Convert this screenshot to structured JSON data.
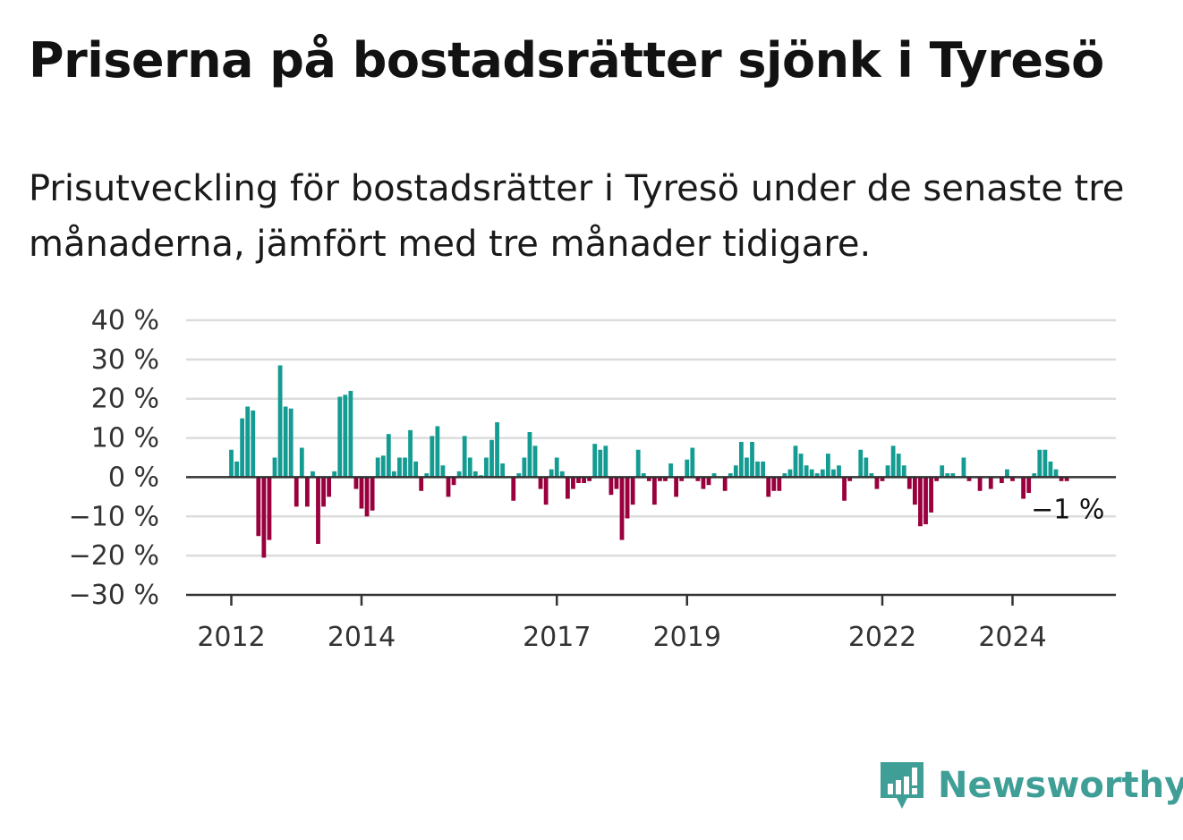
{
  "title": "Priserna på bostadsrätter sjönk i Tyresö",
  "subtitle": "Prisutveckling för bostadsrätter i Tyresö under de senaste tre månaderna, jämfört med tre månader tidigare.",
  "brand": {
    "name": "Newsworthy",
    "icon": "newsworthy-logo-icon"
  },
  "colors": {
    "positive": "#149c93",
    "negative": "#99003d",
    "grid": "#dcdcdc",
    "axis": "#333333",
    "brand": "#3f9f97"
  },
  "chart_data": {
    "type": "bar",
    "x_start": "2012-01",
    "frequency": "monthly",
    "ylim": [
      -30,
      40
    ],
    "y_ticks": [
      40,
      30,
      20,
      10,
      0,
      -10,
      -20,
      -30
    ],
    "y_tick_labels": [
      "40 %",
      "30 %",
      "20 %",
      "10 %",
      "0 %",
      "−10 %",
      "−20 %",
      "−30 %"
    ],
    "x_ticks": [
      "2012",
      "2014",
      "2017",
      "2019",
      "2022",
      "2024"
    ],
    "last_value_label": "−1 %",
    "grid": true,
    "values": [
      7,
      4,
      15,
      18,
      17,
      -15,
      -20.5,
      -16,
      5,
      28.5,
      18,
      17.5,
      -7.5,
      7.5,
      -7.5,
      1.5,
      -17,
      -7.5,
      -5,
      1.5,
      20.5,
      21,
      22,
      -3,
      -8,
      -10,
      -8.5,
      5,
      5.5,
      11,
      1.5,
      5,
      5,
      12,
      4,
      -3.5,
      1,
      10.5,
      13,
      3,
      -5,
      -2,
      1.5,
      10.5,
      5,
      1.5,
      0.5,
      5,
      9.5,
      14,
      3.5,
      0,
      -6,
      1,
      5,
      11.5,
      8,
      -3,
      -7,
      2,
      5,
      1.5,
      -5.5,
      -3,
      -1.5,
      -1.5,
      -1,
      8.5,
      7,
      8,
      -4.5,
      -3,
      -16,
      -10.5,
      -7,
      7,
      1,
      -1,
      -7,
      -1,
      -1,
      3.5,
      -5,
      -1,
      4.5,
      7.5,
      -1,
      -3,
      -2,
      1,
      0,
      -3.5,
      1,
      3,
      9,
      5,
      9,
      4,
      4,
      -5,
      -3.5,
      -3.5,
      1,
      2,
      8,
      6,
      3,
      2,
      1,
      2,
      6,
      2,
      3,
      -6,
      -1,
      0,
      7,
      5,
      1,
      -3,
      -1,
      3,
      8,
      6,
      3,
      -3,
      -7,
      -12.5,
      -12,
      -9,
      -1,
      3,
      1,
      1,
      0,
      5,
      -1,
      0,
      -3.5,
      0,
      -3,
      0,
      -1.5,
      2,
      -1,
      0,
      -5.5,
      -4,
      1,
      7,
      7,
      4,
      2,
      -1,
      -1
    ]
  }
}
